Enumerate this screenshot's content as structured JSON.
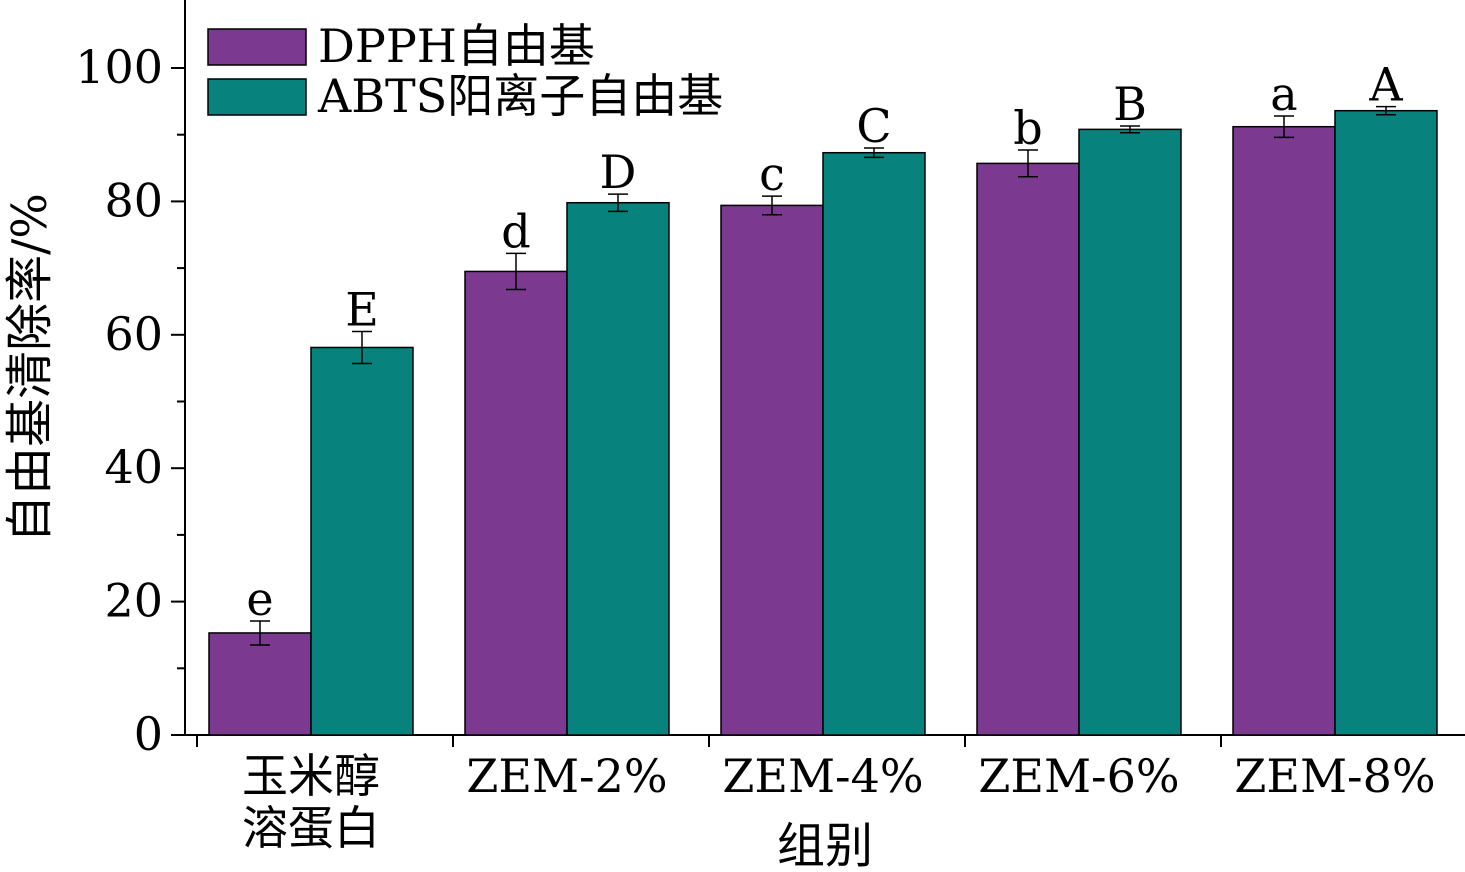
{
  "chart_data": {
    "type": "bar",
    "title": "",
    "xlabel": "组别",
    "ylabel": "自由基清除率/%",
    "ylim": [
      0,
      110
    ],
    "yticks": [
      0,
      20,
      40,
      60,
      80,
      100
    ],
    "legend_position": "top-left",
    "grid": false,
    "categories": [
      [
        "玉米醇",
        "溶蛋白"
      ],
      [
        "ZEM-2%"
      ],
      [
        "ZEM-4%"
      ],
      [
        "ZEM-6%"
      ],
      [
        "ZEM-8%"
      ]
    ],
    "series": [
      {
        "name": "DPPH自由基",
        "color": "#7b3a90",
        "values": [
          15.3,
          69.5,
          79.4,
          85.7,
          91.2
        ],
        "errors": [
          1.8,
          2.7,
          1.4,
          2.0,
          1.6
        ],
        "labels": [
          "e",
          "d",
          "c",
          "b",
          "a"
        ]
      },
      {
        "name": "ABTS阳离子自由基",
        "color": "#07827d",
        "values": [
          58.1,
          79.8,
          87.3,
          90.8,
          93.6
        ],
        "errors": [
          2.4,
          1.3,
          0.7,
          0.5,
          0.6
        ],
        "labels": [
          "E",
          "D",
          "C",
          "B",
          "A"
        ]
      }
    ]
  }
}
